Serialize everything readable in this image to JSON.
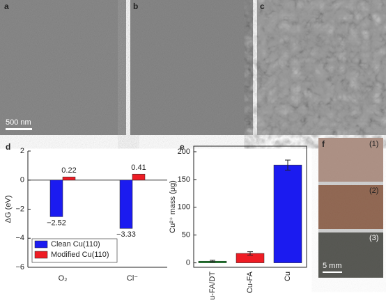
{
  "panels": {
    "a": {
      "label": "a",
      "scale_bar": "500 nm"
    },
    "b": {
      "label": "b"
    },
    "c": {
      "label": "c"
    },
    "f": {
      "label": "f",
      "photos": [
        "(1)",
        "(2)",
        "(3)"
      ],
      "scale_bar": "5 mm"
    }
  },
  "chart_data": [
    {
      "type": "bar",
      "label": "d",
      "ylabel": "ΔG (eV)",
      "categories": [
        "O₂",
        "Cl⁻"
      ],
      "series": [
        {
          "name": "Clean Cu(110)",
          "color": "#1b1bf0",
          "values": [
            -2.52,
            -3.33
          ],
          "value_labels": [
            "−2.52",
            "−3.33"
          ]
        },
        {
          "name": "Modified Cu(110)",
          "color": "#ee1c24",
          "values": [
            0.22,
            0.41
          ],
          "value_labels": [
            "0.22",
            "0.41"
          ]
        }
      ],
      "ylim": [
        -6,
        2
      ],
      "yticks": [
        {
          "value": -6,
          "label": "−6"
        },
        {
          "value": -4,
          "label": "−4"
        },
        {
          "value": -2,
          "label": "−2"
        },
        0,
        2
      ],
      "legend": "lower left"
    },
    {
      "type": "errorbar",
      "label": "e",
      "ylabel": "Cu²⁺ mass (μg)",
      "categories": [
        "Cu-FA/DT",
        "Cu-FA",
        "Cu"
      ],
      "values": [
        3,
        17,
        176
      ],
      "errors": [
        1.5,
        3,
        9
      ],
      "colors": [
        "#1a8a2a",
        "#ee1c24",
        "#1b1bf0"
      ],
      "ylim": [
        -8,
        210
      ],
      "yticks": [
        0,
        50,
        100,
        150,
        200
      ]
    }
  ]
}
